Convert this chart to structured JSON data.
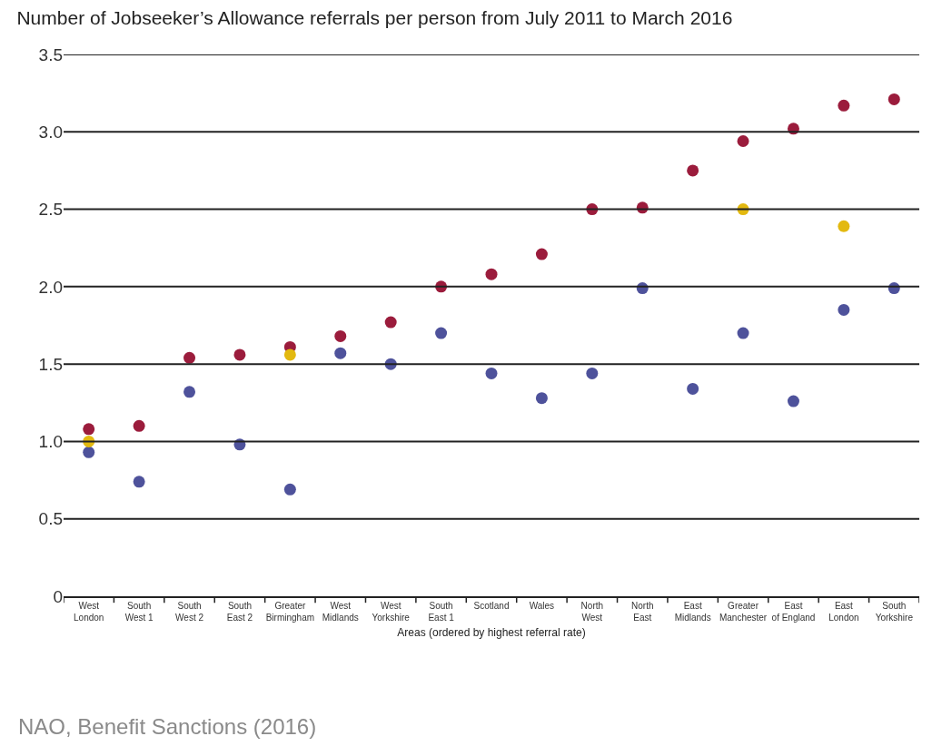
{
  "chart_data": {
    "type": "scatter",
    "title": "Number of Jobseeker’s Allowance referrals per person from July 2011 to March 2016",
    "xlabel": "Areas (ordered by highest referral rate)",
    "categories": [
      "West London",
      "South West 1",
      "South West 2",
      "South East 2",
      "Greater Birmingham",
      "West Midlands",
      "West Yorkshire",
      "South East 1",
      "Scotland",
      "Wales",
      "North West",
      "North East",
      "East Midlands",
      "Greater Manchester",
      "East of England",
      "East London",
      "South Yorkshire"
    ],
    "series": [
      {
        "color": "#9b1c3c",
        "values": [
          1.08,
          1.1,
          1.54,
          1.56,
          1.61,
          1.68,
          1.77,
          2.0,
          2.08,
          2.21,
          2.5,
          2.51,
          2.75,
          2.94,
          3.02,
          3.17,
          3.21
        ]
      },
      {
        "color": "#4e529b",
        "values": [
          0.93,
          0.74,
          1.32,
          0.98,
          0.69,
          1.57,
          1.5,
          1.7,
          1.44,
          1.28,
          1.44,
          1.99,
          1.34,
          1.7,
          1.26,
          1.85,
          1.99
        ]
      },
      {
        "color": "#e3b910",
        "values": [
          1.0,
          null,
          null,
          null,
          1.56,
          null,
          null,
          null,
          null,
          null,
          null,
          null,
          null,
          2.5,
          null,
          2.39,
          null
        ]
      }
    ],
    "ylim": [
      0,
      3.5
    ],
    "yticks": [
      0,
      0.5,
      {
        "value": 1,
        "label": "1.0"
      },
      1.5,
      {
        "value": 2,
        "label": "2.0"
      },
      2.5,
      {
        "value": 3,
        "label": "3.0"
      },
      3.5
    ],
    "grid": "y",
    "marker": "circle",
    "annotations": [
      "NAO, Benefit Sanctions (2016)"
    ]
  }
}
